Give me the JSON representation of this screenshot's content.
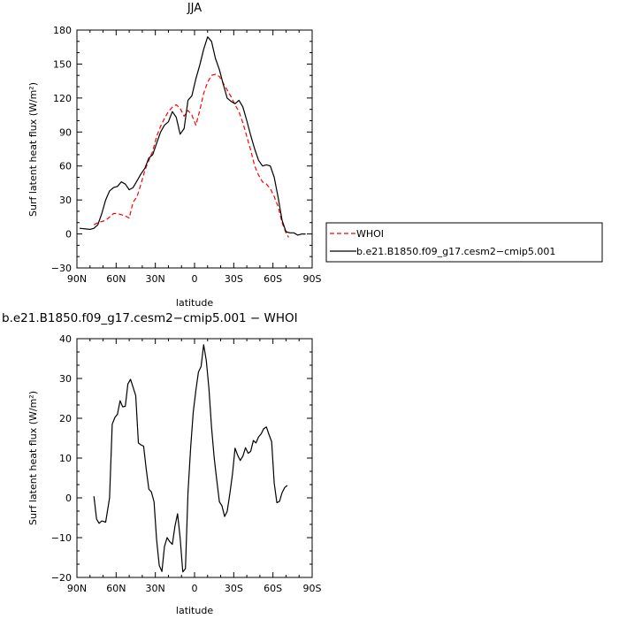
{
  "chart_data": [
    {
      "type": "line",
      "title": "JJA",
      "xlabel": "latitude",
      "ylabel": "Surf latent heat flux (W/m²)",
      "xlim": [
        -90,
        90
      ],
      "ylim": [
        -30,
        180
      ],
      "xticks": [
        -90,
        -60,
        -30,
        0,
        30,
        60,
        90
      ],
      "xtick_labels": [
        "90N",
        "60N",
        "30N",
        "0",
        "30S",
        "60S",
        "90S"
      ],
      "yticks": [
        -30,
        0,
        30,
        60,
        90,
        120,
        150,
        180
      ],
      "ytick_labels": [
        "−30",
        "0",
        "30",
        "60",
        "90",
        "120",
        "150",
        "180"
      ],
      "legend": {
        "placement": "right"
      },
      "series": [
        {
          "name": "WHOI",
          "color": "#ff0000",
          "style": "dashed",
          "x": [
            -77,
            -74,
            -71,
            -68,
            -65,
            -62,
            -59,
            -56,
            -53,
            -50,
            -47,
            -44,
            -41,
            -38,
            -35,
            -32,
            -29,
            -26,
            -23,
            -20,
            -17,
            -14,
            -11,
            -8,
            -5,
            -2,
            1,
            4,
            7,
            10,
            13,
            16,
            19,
            22,
            25,
            28,
            31,
            34,
            37,
            40,
            43,
            46,
            49,
            52,
            55,
            58,
            61,
            64,
            67,
            70,
            72
          ],
          "y": [
            8,
            10,
            11,
            12,
            15,
            18,
            18,
            17,
            16,
            14,
            28,
            33,
            44,
            56,
            65,
            73,
            86,
            95,
            102,
            108,
            112,
            114,
            111,
            104,
            109,
            105,
            96,
            109,
            124,
            134,
            140,
            141,
            139,
            133,
            127,
            121,
            114,
            108,
            98,
            86,
            74,
            60,
            52,
            46,
            44,
            40,
            33,
            24,
            10,
            1,
            -3
          ]
        },
        {
          "name": "b.e21.B1850.f09_g17.cesm2−cmip5.001",
          "color": "#000000",
          "style": "solid",
          "x": [
            -88,
            -80,
            -77,
            -74,
            -71,
            -68,
            -65,
            -62,
            -59,
            -56,
            -53,
            -50,
            -47,
            -44,
            -41,
            -38,
            -35,
            -32,
            -29,
            -26,
            -23,
            -20,
            -17,
            -14,
            -11,
            -8,
            -5,
            -2,
            1,
            4,
            7,
            10,
            13,
            16,
            19,
            22,
            25,
            28,
            31,
            34,
            37,
            40,
            43,
            46,
            49,
            52,
            55,
            58,
            61,
            64,
            67,
            70,
            73,
            76,
            79,
            82,
            85
          ],
          "y": [
            5,
            4,
            5,
            8,
            18,
            30,
            38,
            41,
            42,
            46,
            44,
            39,
            41,
            47,
            53,
            58,
            67,
            70,
            80,
            90,
            96,
            99,
            108,
            103,
            88,
            93,
            118,
            122,
            137,
            149,
            163,
            174,
            170,
            155,
            145,
            132,
            120,
            117,
            115,
            118,
            112,
            100,
            87,
            75,
            65,
            60,
            61,
            60,
            50,
            32,
            12,
            2,
            1,
            1,
            -1,
            0,
            0
          ]
        }
      ]
    },
    {
      "type": "line",
      "title": "b.e21.B1850.f09_g17.cesm2−cmip5.001 − WHOI",
      "xlabel": "latitude",
      "ylabel": "Surf latent heat flux (W/m²)",
      "xlim": [
        -90,
        90
      ],
      "ylim": [
        -20,
        40
      ],
      "xticks": [
        -90,
        -60,
        -30,
        0,
        30,
        60,
        90
      ],
      "xtick_labels": [
        "90N",
        "60N",
        "30N",
        "0",
        "30S",
        "60S",
        "90S"
      ],
      "yticks": [
        -20,
        -10,
        0,
        10,
        20,
        30,
        40
      ],
      "ytick_labels": [
        "−20",
        "−10",
        "0",
        "10",
        "20",
        "30",
        "40"
      ],
      "series": [
        {
          "color": "#000000",
          "style": "solid",
          "x": [
            -77,
            -75,
            -73,
            -71,
            -68,
            -65,
            -63,
            -61,
            -59,
            -57,
            -55,
            -53,
            -51,
            -49,
            -47,
            -45,
            -43,
            -41,
            -39,
            -37,
            -35,
            -33,
            -31,
            -29,
            -27,
            -25,
            -23,
            -21,
            -19,
            -17,
            -15,
            -13,
            -11,
            -9,
            -7,
            -5,
            -3,
            -1,
            1,
            3,
            5,
            7,
            9,
            11,
            13,
            15,
            17,
            19,
            21,
            23,
            25,
            27,
            29,
            31,
            33,
            35,
            37,
            39,
            41,
            43,
            45,
            47,
            49,
            51,
            53,
            55,
            57,
            59,
            61,
            63,
            65,
            67,
            69,
            71
          ],
          "y": [
            0.4,
            -5.3,
            -6.4,
            -5.8,
            -6.1,
            0,
            18.5,
            20.2,
            21,
            24.4,
            22.9,
            23,
            28.6,
            29.8,
            27.8,
            25.7,
            13.8,
            13.3,
            13,
            7.3,
            2.2,
            1.5,
            -1,
            -10.5,
            -17,
            -18.5,
            -12.2,
            -10,
            -11,
            -11.7,
            -7.2,
            -4,
            -10,
            -18.6,
            -17.8,
            1.4,
            12.6,
            21.5,
            27,
            31.6,
            33,
            38.5,
            34.5,
            27.4,
            17.8,
            10.1,
            4.5,
            -1,
            -2,
            -4.7,
            -3.4,
            1,
            6,
            12.5,
            10.7,
            9.4,
            10.5,
            12.6,
            11.2,
            11.7,
            14.4,
            13.8,
            15.3,
            16.1,
            17.4,
            17.8,
            15.9,
            14.1,
            3.7,
            -1.2,
            -0.9,
            1.3,
            2.6,
            3.1
          ]
        }
      ]
    }
  ]
}
